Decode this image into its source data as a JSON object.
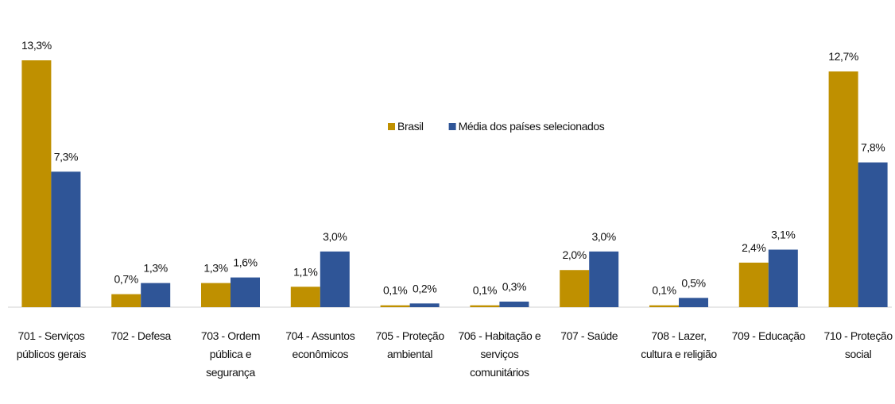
{
  "chart_data": {
    "type": "bar",
    "categories": [
      "701 - Serviços públicos gerais",
      "702 - Defesa",
      "703 - Ordem pública e segurança",
      "704 - Assuntos econômicos",
      "705 - Proteção ambiental",
      "706 - Habitação e serviços comunitários",
      "707 - Saúde",
      "708 - Lazer, cultura e religião",
      "709 - Educação",
      "710 - Proteção social"
    ],
    "series": [
      {
        "name": "Brasil",
        "color": "#bf9000",
        "values": [
          13.3,
          0.7,
          1.3,
          1.1,
          0.1,
          0.1,
          2.0,
          0.1,
          2.4,
          12.7
        ],
        "value_labels": [
          "13,3%",
          "0,7%",
          "1,3%",
          "1,1%",
          "0,1%",
          "0,1%",
          "2,0%",
          "0,1%",
          "2,4%",
          "12,7%"
        ]
      },
      {
        "name": "Média dos países selecionados",
        "color": "#2f5597",
        "values": [
          7.3,
          1.3,
          1.6,
          3.0,
          0.2,
          0.3,
          3.0,
          0.5,
          3.1,
          7.8
        ],
        "value_labels": [
          "7,3%",
          "1,3%",
          "1,6%",
          "3,0%",
          "0,2%",
          "0,3%",
          "3,0%",
          "0,5%",
          "3,1%",
          "7,8%"
        ]
      }
    ],
    "legend": "center"
  }
}
